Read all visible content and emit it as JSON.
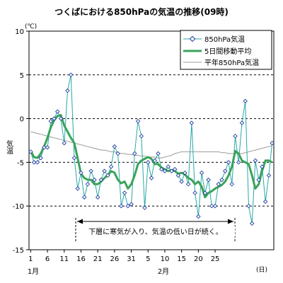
{
  "chart_data": {
    "type": "line",
    "title": "つくばにおける850hPaの気温の推移(09時)",
    "ylabel": "気温",
    "y_unit": "(℃)",
    "x_unit": "(日)",
    "ylim": [
      -15,
      10
    ],
    "y_ticks": [
      10,
      5,
      0,
      -5,
      -10,
      -15
    ],
    "y_gridlines": [
      5,
      0,
      -5,
      -10
    ],
    "grid": "horizontal dashed",
    "legend_position": "top-right",
    "x_tick_labels": [
      "1",
      "6",
      "11",
      "16",
      "21",
      "26",
      "31",
      "5",
      "10",
      "15",
      "20",
      "25"
    ],
    "month_labels": [
      "1月",
      "2月"
    ],
    "colors": {
      "daily": "#2aa7a7",
      "daily_marker": "#1f3fa0",
      "moving_average": "#3aa35a",
      "normal": "#9a9a9a",
      "grid": "#000000"
    },
    "annotation": "下層に寒気が入り、気温の低い日が続く。",
    "series": [
      {
        "name": "850hPa気温",
        "style": "thin line with diamond markers",
        "values": [
          -3.8,
          -5.0,
          -5.0,
          -4.5,
          -3.3,
          -3.3,
          -0.3,
          0.0,
          0.8,
          0.0,
          -2.8,
          3.2,
          5.0,
          -4.5,
          -8.0,
          -6.2,
          -9.0,
          -7.5,
          -6.0,
          -7.0,
          -9.0,
          -7.0,
          -6.0,
          -6.5,
          -5.5,
          -3.2,
          -4.0,
          -10.0,
          -8.5,
          -10.0,
          -9.8,
          -4.0,
          -0.3,
          -2.0,
          -10.2,
          -5.0,
          -6.8,
          -4.8,
          -4.0,
          -5.8,
          -6.0,
          -5.5,
          -6.0,
          -5.8,
          -6.5,
          -7.2,
          -6.2,
          -7.5,
          -0.5,
          -8.5,
          -11.2,
          -6.2,
          -8.5,
          -7.0,
          -10.0,
          -10.0,
          -7.5,
          -7.0,
          -6.0,
          -5.0,
          -7.5,
          -2.0,
          -5.0,
          -0.5,
          2.0,
          -10.0,
          -12.0,
          -4.8,
          -7.0,
          -5.5,
          -9.5,
          -6.5,
          -2.8
        ]
      },
      {
        "name": "5日間移動平均",
        "style": "thick line",
        "values": [
          -3.7,
          -4.4,
          -4.5,
          -4.0,
          -3.2,
          -2.2,
          -1.0,
          -0.2,
          0.3,
          0.4,
          -0.8,
          -1.5,
          -2.2,
          -2.8,
          -4.5,
          -6.3,
          -6.8,
          -7.0,
          -7.0,
          -7.5,
          -7.5,
          -7.2,
          -6.8,
          -6.5,
          -6.0,
          -6.2,
          -7.0,
          -7.4,
          -7.2,
          -8.0,
          -7.5,
          -6.5,
          -5.2,
          -4.8,
          -4.6,
          -4.4,
          -4.6,
          -5.2,
          -5.2,
          -5.6,
          -5.8,
          -6.0,
          -5.9,
          -6.0,
          -6.3,
          -6.2,
          -6.4,
          -6.8,
          -7.0,
          -7.5,
          -7.2,
          -7.8,
          -9.0,
          -8.5,
          -8.3,
          -8.0,
          -7.8,
          -7.6,
          -7.2,
          -6.5,
          -5.5,
          -3.7,
          -4.0,
          -4.8,
          -5.0,
          -5.2,
          -6.5,
          -8.0,
          -7.5,
          -6.0,
          -4.8,
          -4.8,
          -5.0
        ]
      },
      {
        "name": "平年850hPa気温",
        "style": "thin grey line",
        "values": [
          -1.5,
          -1.6,
          -1.7,
          -1.8,
          -1.9,
          -2.0,
          -2.1,
          -2.2,
          -2.3,
          -2.4,
          -2.5,
          -2.6,
          -2.7,
          -2.8,
          -2.9,
          -3.0,
          -3.1,
          -3.2,
          -3.3,
          -3.4,
          -3.5,
          -3.6,
          -3.6,
          -3.7,
          -3.8,
          -3.8,
          -3.9,
          -4.0,
          -4.0,
          -4.1,
          -4.1,
          -4.2,
          -4.2,
          -4.3,
          -4.3,
          -4.4,
          -4.4,
          -4.4,
          -4.5,
          -4.5,
          -4.4,
          -4.3,
          -4.2,
          -4.0,
          -3.9,
          -3.8,
          -3.8,
          -3.8,
          -3.8,
          -3.8,
          -3.8,
          -3.8,
          -3.8,
          -3.8,
          -3.8,
          -3.8,
          -3.8,
          -3.9,
          -3.9,
          -4.0,
          -4.0,
          -4.0,
          -4.0,
          -4.0,
          -3.9,
          -3.8,
          -3.7,
          -3.6,
          -3.5,
          -3.4,
          -3.3,
          -3.2,
          -3.1
        ]
      }
    ]
  }
}
